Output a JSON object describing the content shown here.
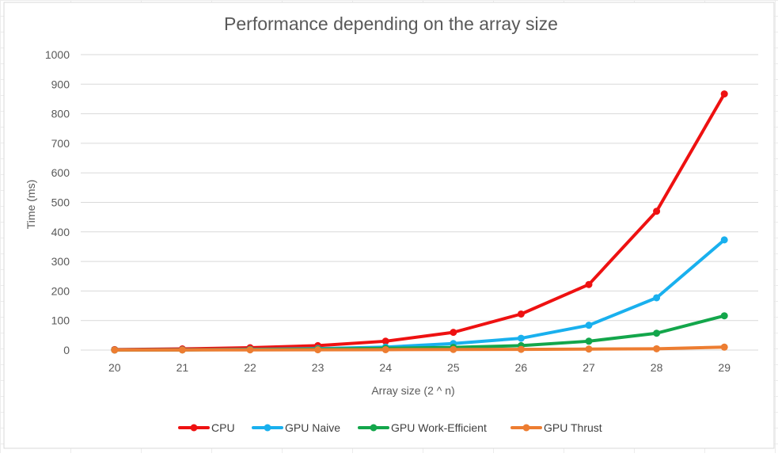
{
  "chart_data": {
    "type": "line",
    "title": "Performance depending on the array size",
    "xlabel": "Array size (2 ^ n)",
    "ylabel": "Time (ms)",
    "categories": [
      "20",
      "21",
      "22",
      "23",
      "24",
      "25",
      "26",
      "27",
      "28",
      "29"
    ],
    "ylim": [
      0,
      1000
    ],
    "yticks": [
      "0",
      "100",
      "200",
      "300",
      "400",
      "500",
      "600",
      "700",
      "800",
      "900",
      "1000"
    ],
    "grid": true,
    "legend_position": "bottom",
    "series": [
      {
        "name": "CPU",
        "color": "#ee1111",
        "values": [
          1.8,
          4,
          8,
          15,
          30,
          60,
          122,
          222,
          470,
          867
        ]
      },
      {
        "name": "GPU Naive",
        "color": "#19b0ee",
        "values": [
          0.5,
          1,
          2.5,
          5,
          10,
          22,
          40,
          84,
          177,
          373
        ]
      },
      {
        "name": "GPU Work-Efficient",
        "color": "#13a64b",
        "values": [
          0.4,
          0.8,
          1.8,
          3.5,
          6,
          9,
          15,
          30,
          57,
          116
        ]
      },
      {
        "name": "GPU Thrust",
        "color": "#ed7d31",
        "values": [
          0.3,
          0.5,
          0.8,
          1,
          1.5,
          2,
          2.5,
          3.5,
          4.5,
          10
        ]
      }
    ]
  }
}
